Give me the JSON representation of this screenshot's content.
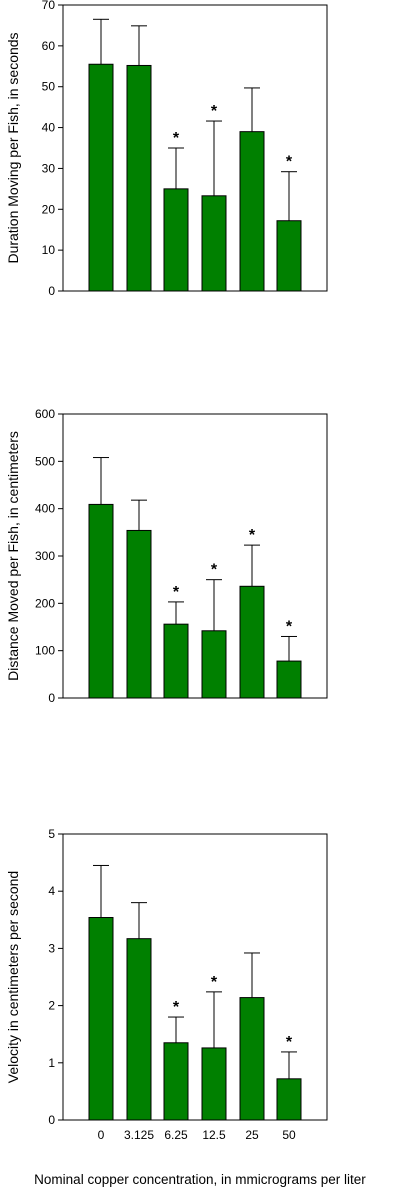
{
  "chart_data": [
    {
      "type": "bar",
      "categories": [
        "0",
        "3.125",
        "6.25",
        "12.5",
        "25",
        "50"
      ],
      "values": [
        55.5,
        55.2,
        25.0,
        23.3,
        39.0,
        17.2
      ],
      "errors": [
        11.0,
        9.7,
        10.0,
        18.3,
        10.7,
        12.0
      ],
      "significance": [
        "",
        "",
        "*",
        "*",
        "",
        "*"
      ],
      "ylabel": "Duration Moving per Fish, in seconds",
      "ylim": [
        0,
        70
      ],
      "yticks": [
        0,
        10,
        20,
        30,
        40,
        50,
        60,
        70
      ],
      "bar_color": "#008000",
      "show_x_tick_labels": false
    },
    {
      "type": "bar",
      "categories": [
        "0",
        "3.125",
        "6.25",
        "12.5",
        "25",
        "50"
      ],
      "values": [
        409,
        354,
        156,
        142,
        236,
        78
      ],
      "errors": [
        99,
        64,
        47,
        108,
        87,
        52
      ],
      "significance": [
        "",
        "",
        "*",
        "*",
        "*",
        "*"
      ],
      "ylabel": "Distance Moved per Fish, in centimeters",
      "ylim": [
        0,
        600
      ],
      "yticks": [
        0,
        100,
        200,
        300,
        400,
        500,
        600
      ],
      "bar_color": "#008000",
      "show_x_tick_labels": false
    },
    {
      "type": "bar",
      "categories": [
        "0",
        "3.125",
        "6.25",
        "12.5",
        "25",
        "50"
      ],
      "values": [
        3.54,
        3.17,
        1.35,
        1.26,
        2.14,
        0.72
      ],
      "errors": [
        0.91,
        0.63,
        0.45,
        0.98,
        0.78,
        0.47
      ],
      "significance": [
        "",
        "",
        "*",
        "*",
        "",
        "*"
      ],
      "ylabel": "Velocity in centimeters per second",
      "ylim": [
        0,
        5
      ],
      "yticks": [
        0,
        1,
        2,
        3,
        4,
        5
      ],
      "bar_color": "#008000",
      "show_x_tick_labels": true
    }
  ],
  "xlabel": "Nominal copper concentration, in mmicrograms per liter"
}
